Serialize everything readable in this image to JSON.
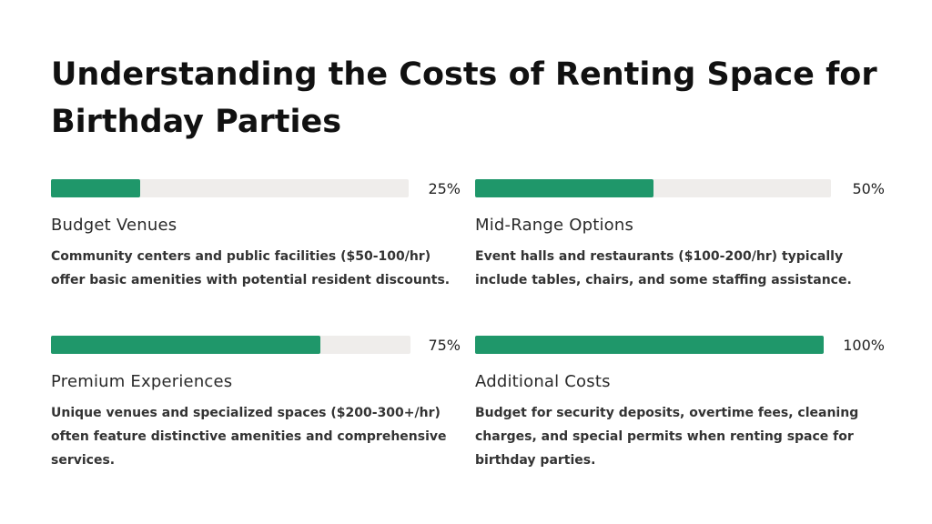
{
  "title": "Understanding the Costs of Renting Space for Birthday Parties",
  "colors": {
    "bar_fill": "#1f976a",
    "bar_track": "#efedeb",
    "text": "#1a1a1a"
  },
  "items": [
    {
      "percent_label": "25%",
      "progress": 0.25,
      "heading": "Budget Venues",
      "description": "Community centers and public facilities ($50-100/hr) offer basic amenities with potential resident discounts."
    },
    {
      "percent_label": "50%",
      "progress": 0.5,
      "heading": "Mid-Range Options",
      "description": "Event halls and restaurants ($100-200/hr) typically include tables, chairs, and some staffing assistance."
    },
    {
      "percent_label": "75%",
      "progress": 0.75,
      "heading": "Premium Experiences",
      "description": "Unique venues and specialized spaces ($200-300+/hr) often feature distinctive amenities and comprehensive services."
    },
    {
      "percent_label": "100%",
      "progress": 1.0,
      "heading": "Additional Costs",
      "description": "Budget for security deposits, overtime fees, cleaning charges, and special permits when renting space for birthday parties."
    }
  ]
}
